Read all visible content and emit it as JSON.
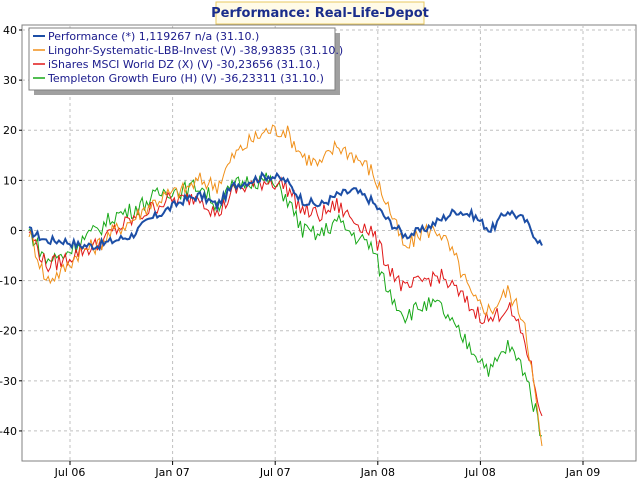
{
  "chart_data": {
    "type": "line",
    "title": "Performance: Real-Life-Depot",
    "xlabel": "",
    "ylabel": "",
    "ylim": [
      -46,
      41
    ],
    "y_ticks": [
      40,
      30,
      20,
      10,
      0,
      -10,
      -20,
      -30,
      -40
    ],
    "y_tick_labels": [
      "40",
      "30",
      "20",
      "10",
      "0",
      "-10",
      "-20",
      "-30",
      "-40"
    ],
    "x_tick_labels": [
      "Jul 06",
      "Jan 07",
      "Jul 07",
      "Jan 08",
      "Jul 08",
      "Jan 09"
    ],
    "grid": true,
    "legend_position": "top-left",
    "x": [
      "2006-04",
      "2006-05",
      "2006-06",
      "2006-07",
      "2006-08",
      "2006-09",
      "2006-10",
      "2006-11",
      "2006-12",
      "2007-01",
      "2007-02",
      "2007-03",
      "2007-04",
      "2007-05",
      "2007-06",
      "2007-07",
      "2007-08",
      "2007-09",
      "2007-10",
      "2007-11",
      "2007-12",
      "2008-01",
      "2008-02",
      "2008-03",
      "2008-04",
      "2008-05",
      "2008-06",
      "2008-07",
      "2008-08",
      "2008-09",
      "2008-10"
    ],
    "series": [
      {
        "name": "Performance (*) 1,119267 n/a (31.10.)",
        "color": "#1c4ea6",
        "values": [
          0,
          -2,
          -2,
          -3,
          -3,
          -2,
          -1,
          2,
          4,
          6,
          7,
          5,
          9,
          10,
          11,
          10,
          6,
          5,
          7,
          8,
          6,
          2,
          -1,
          0,
          2,
          4,
          3,
          0,
          4,
          2,
          -3
        ]
      },
      {
        "name": "Lingohr-Systematic-LBB-Invest (V) -38,93835 (31.10.)",
        "color": "#f0901a",
        "values": [
          0,
          -10,
          -8,
          -4,
          -3,
          0,
          2,
          5,
          7,
          8,
          10,
          9,
          15,
          18,
          20,
          20,
          15,
          13,
          17,
          15,
          12,
          5,
          -4,
          0,
          0,
          -6,
          -14,
          -16,
          -12,
          -18,
          -43
        ]
      },
      {
        "name": "iShares MSCI World DZ (X) (V) -30,23656 (31.10.)",
        "color": "#e01818",
        "values": [
          0,
          -7,
          -6,
          -4,
          -3,
          0,
          2,
          4,
          6,
          6,
          7,
          3,
          8,
          9,
          10,
          9,
          4,
          3,
          5,
          2,
          0,
          -7,
          -12,
          -10,
          -9,
          -12,
          -16,
          -18,
          -15,
          -22,
          -37
        ]
      },
      {
        "name": "Templeton Growth Euro (H) (V) -36,23311 (31.10.)",
        "color": "#18a818",
        "values": [
          0,
          -6,
          -5,
          -2,
          0,
          3,
          4,
          6,
          8,
          8,
          9,
          5,
          9,
          10,
          10,
          7,
          0,
          -1,
          2,
          -1,
          -3,
          -12,
          -17,
          -15,
          -15,
          -20,
          -24,
          -28,
          -23,
          -28,
          -41
        ]
      }
    ]
  }
}
